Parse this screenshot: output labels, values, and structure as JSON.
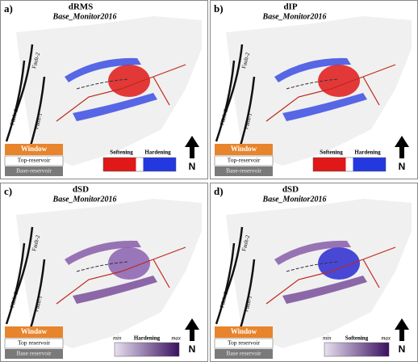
{
  "panels": [
    {
      "letter": "a)",
      "title": "dRMS",
      "subtitle": "Base_Monitor2016",
      "faults": [
        "Fault-2",
        "Fault-3",
        "Fault-1"
      ],
      "window": {
        "title": "Window",
        "top": "Top-reservoir",
        "base": "Base-reservoir"
      },
      "colorbar": {
        "labels": [
          "Softening",
          "Hardening"
        ],
        "colors": [
          "#e01818",
          "#ffffff",
          "#2438e0"
        ]
      },
      "north": "N"
    },
    {
      "letter": "b)",
      "title": "dIP",
      "subtitle": "Base_Monitor2016",
      "faults": [
        "Fault-2",
        "Fault-3",
        "Fault-1"
      ],
      "window": {
        "title": "Window",
        "top": "Top-reservoir",
        "base": "Base-reservoir"
      },
      "colorbar": {
        "labels": [
          "Softening",
          "Hardening"
        ],
        "colors": [
          "#e01818",
          "#ffffff",
          "#2438e0"
        ]
      },
      "north": "N"
    },
    {
      "letter": "c)",
      "title": "dSD",
      "subtitle": "Base_Monitor2016",
      "faults": [
        "Fault-2",
        "Fault-3",
        "Fault-1"
      ],
      "window": {
        "title": "Window",
        "top": "Top reservoir",
        "base": "Base reservoir"
      },
      "colorbar": {
        "labels": [
          "min",
          "Hardening",
          "max"
        ],
        "colors": [
          "#e8e0f0",
          "#3a1060"
        ]
      },
      "north": "N"
    },
    {
      "letter": "d)",
      "title": "dSD",
      "subtitle": "Base_Monitor2016",
      "faults": [
        "Fault-2",
        "Fault-3",
        "Fault-1"
      ],
      "window": {
        "title": "Window",
        "top": "Top reservoir",
        "base": "Base reservoir"
      },
      "colorbar": {
        "labels": [
          "min",
          "Softening",
          "max"
        ],
        "colors": [
          "#e8e0f0",
          "#3a1060"
        ]
      },
      "north": "N"
    }
  ]
}
